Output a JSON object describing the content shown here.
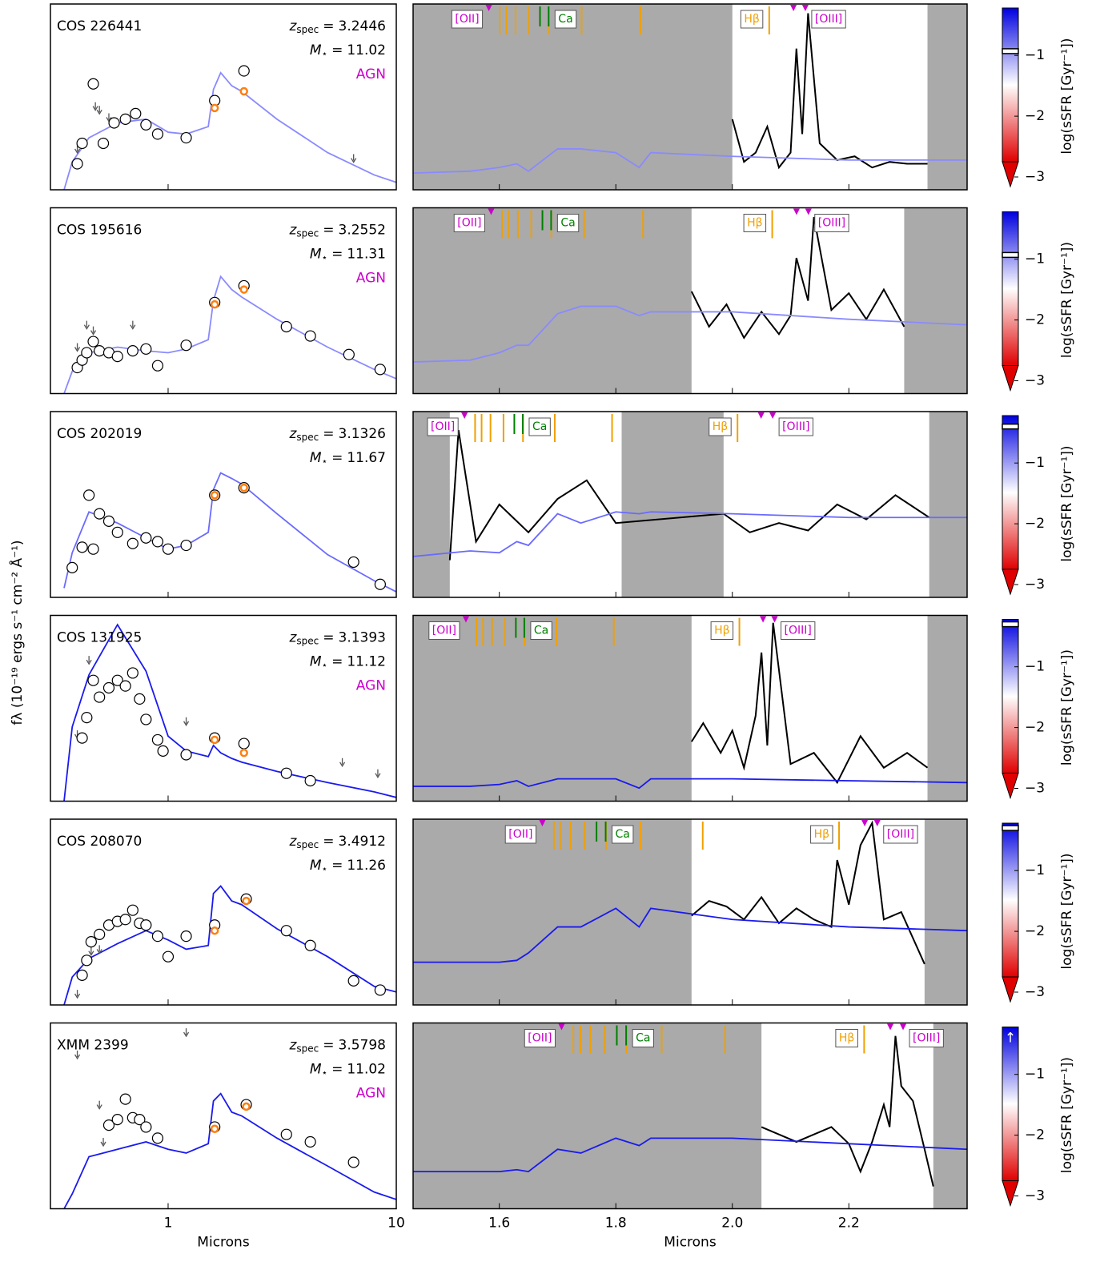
{
  "chart_data": {
    "type": "sed-spectrum-grid",
    "y_label": "fλ (10⁻¹⁹ ergs s⁻¹ cm⁻² Å⁻¹)",
    "x_label_left": "Microns",
    "x_label_right": "Microns",
    "left_xlim": [
      0.305,
      10
    ],
    "left_log": true,
    "left_xticks": [
      1,
      10
    ],
    "right_xlim": [
      1.452,
      2.403
    ],
    "right_xticks": [
      1.6,
      1.8,
      {
        "value": 2,
        "label": "2.0"
      },
      2.2
    ],
    "ylim": [
      0,
      10
    ],
    "colorbar_label": "log(sSFR [Gyr⁻¹])",
    "colorbar_lim": [
      -3,
      -0.22
    ],
    "colorbar_ticks": [
      {
        "value": -1,
        "label": "−1"
      },
      {
        "value": -2,
        "label": "−2"
      },
      {
        "value": -3,
        "label": "−3"
      }
    ],
    "colorbar_colors": [
      "#0000e0",
      "#ffffff",
      "#e00000"
    ],
    "redshift_label": {
      "symbol": "z",
      "subscript": "spec",
      "sign": "="
    },
    "mass_label": {
      "symbol": "M",
      "subscript": "⋆",
      "sign": "="
    },
    "flag_color": "#cc00cc",
    "photometry_color": "#ffffff",
    "fit_color": "#ff7f0e",
    "limit_color": "#555555",
    "spectrum_color": "#000000",
    "masked_color": "#aaaaaa",
    "features": [
      {
        "name": "[OII]",
        "rest": [
          0.3727
        ],
        "color": "#cc00cc",
        "style": "triangle",
        "label_side": "left"
      },
      {
        "rest": [
          0.3771,
          0.3798,
          0.3835,
          0.3889,
          0.397,
          0.4102,
          0.434
        ],
        "color": "#f0a000",
        "style": "bar"
      },
      {
        "name": "Ca",
        "rest": [
          0.3934,
          0.3969
        ],
        "color": "#008000",
        "style": "bar",
        "label_side": "right"
      },
      {
        "name": "Hβ",
        "rest": [
          0.4861
        ],
        "color": "#f0a000",
        "style": "bar",
        "label_side": "left"
      },
      {
        "name": "[OIII]",
        "rest": [
          0.4959,
          0.5007
        ],
        "color": "#cc00cc",
        "style": "triangle",
        "label_side": "right"
      }
    ],
    "sed_x": [
      0.35,
      0.38,
      0.45,
      0.6,
      0.8,
      1.0,
      1.2,
      1.5,
      1.58,
      1.7,
      1.9,
      2.1,
      3,
      5,
      8,
      10
    ],
    "model_x": [
      1.452,
      1.55,
      1.6,
      1.63,
      1.65,
      1.7,
      1.74,
      1.8,
      1.84,
      1.86,
      2.0,
      2.2,
      2.403
    ],
    "panels": [
      {
        "name": "COS 226441",
        "zspec": 3.2446,
        "mass": 11.02,
        "flag": "AGN",
        "ssfr": -0.93,
        "sed_color": "#8a8aff",
        "sed_y": [
          0,
          1.5,
          2.8,
          3.6,
          3.8,
          3.1,
          3.0,
          3.4,
          5.4,
          6.3,
          5.6,
          5.3,
          3.8,
          2.0,
          0.8,
          0.4
        ],
        "phot_x": [
          0.4,
          0.42,
          0.47,
          0.52,
          0.58,
          0.65,
          0.72,
          0.8,
          0.9,
          1.2,
          1.6,
          2.15
        ],
        "phot_y": [
          1.4,
          2.5,
          5.7,
          2.5,
          3.6,
          3.8,
          4.1,
          3.5,
          3.0,
          2.8,
          4.8,
          6.4
        ],
        "fit_x": [
          1.6,
          2.15
        ],
        "fit_y": [
          4.4,
          5.3
        ],
        "lim_x": [
          0.4,
          0.48,
          0.5,
          0.55,
          6.5
        ],
        "lim_y": [
          2.2,
          4.5,
          4.3,
          3.9,
          1.7
        ],
        "windows": [
          [
            2.0,
            2.335
          ]
        ],
        "model_y": [
          0.9,
          1.0,
          1.2,
          1.4,
          1.0,
          2.2,
          2.2,
          2.0,
          1.2,
          2.0,
          1.8,
          1.6,
          1.6
        ],
        "obs_x": [
          2.0,
          2.02,
          2.04,
          2.06,
          2.08,
          2.1,
          2.11,
          2.12,
          2.13,
          2.15,
          2.18,
          2.21,
          2.24,
          2.27,
          2.3,
          2.335
        ],
        "obs_y": [
          3.8,
          1.5,
          2.0,
          3.4,
          1.2,
          2.0,
          7.6,
          3.0,
          9.5,
          2.5,
          1.6,
          1.8,
          1.2,
          1.5,
          1.4,
          1.4
        ]
      },
      {
        "name": "COS 195616",
        "zspec": 3.2552,
        "mass": 11.31,
        "flag": "AGN",
        "ssfr": -0.93,
        "sed_color": "#8a8aff",
        "sed_y": [
          0,
          1.2,
          2.2,
          2.5,
          2.3,
          2.2,
          2.4,
          2.9,
          5.0,
          6.3,
          5.6,
          5.2,
          4.0,
          2.5,
          1.3,
          0.8
        ],
        "phot_x": [
          0.4,
          0.42,
          0.44,
          0.47,
          0.5,
          0.55,
          0.6,
          0.7,
          0.8,
          0.9,
          1.2,
          1.6,
          2.15,
          3.3,
          4.2,
          6.2,
          8.5
        ],
        "phot_y": [
          1.4,
          1.8,
          2.2,
          2.8,
          2.3,
          2.2,
          2.0,
          2.3,
          2.4,
          1.5,
          2.6,
          4.9,
          5.8,
          3.6,
          3.1,
          2.1,
          1.3
        ],
        "fit_x": [
          1.6,
          2.15
        ],
        "fit_y": [
          4.8,
          5.6
        ],
        "lim_x": [
          0.4,
          0.44,
          0.47,
          0.7
        ],
        "lim_y": [
          2.5,
          3.7,
          3.4,
          3.7
        ],
        "windows": [
          [
            1.93,
            2.295
          ]
        ],
        "model_y": [
          1.7,
          1.8,
          2.2,
          2.6,
          2.6,
          4.3,
          4.7,
          4.7,
          4.2,
          4.4,
          4.4,
          4.0,
          3.7
        ],
        "obs_x": [
          1.93,
          1.96,
          1.99,
          2.02,
          2.05,
          2.08,
          2.1,
          2.11,
          2.13,
          2.14,
          2.17,
          2.2,
          2.23,
          2.26,
          2.295
        ],
        "obs_y": [
          5.5,
          3.6,
          4.8,
          3.0,
          4.4,
          3.2,
          4.2,
          7.3,
          5.0,
          9.5,
          4.5,
          5.4,
          4.0,
          5.6,
          3.6
        ]
      },
      {
        "name": "COS 202019",
        "zspec": 3.1326,
        "mass": 11.67,
        "ssfr": -0.4,
        "sed_color": "#6a6aff",
        "sed_y": [
          0.5,
          2.4,
          4.6,
          4.0,
          3.2,
          2.6,
          2.8,
          3.5,
          5.8,
          6.7,
          6.4,
          6.1,
          4.5,
          2.3,
          0.9,
          0.3
        ],
        "phot_x": [
          0.38,
          0.42,
          0.45,
          0.47,
          0.5,
          0.55,
          0.6,
          0.7,
          0.8,
          0.9,
          1.0,
          1.2,
          1.6,
          2.15,
          6.5,
          8.5
        ],
        "phot_y": [
          1.6,
          2.7,
          5.5,
          2.6,
          4.5,
          4.1,
          3.5,
          2.9,
          3.2,
          3.0,
          2.6,
          2.8,
          5.5,
          5.9,
          1.9,
          0.7
        ],
        "fit_x": [
          1.6,
          2.15
        ],
        "fit_y": [
          5.5,
          5.9
        ],
        "lim_x": [],
        "lim_y": [],
        "windows": [
          [
            1.515,
            1.81
          ],
          [
            1.985,
            2.338
          ]
        ],
        "model_y": [
          2.2,
          2.5,
          2.4,
          3.0,
          2.8,
          4.5,
          4.0,
          4.6,
          4.5,
          4.6,
          4.5,
          4.3,
          4.3
        ],
        "obs_x": [
          1.515,
          1.53,
          1.56,
          1.6,
          1.65,
          1.7,
          1.75,
          1.8,
          1.985,
          2.03,
          2.08,
          2.13,
          2.18,
          2.23,
          2.28,
          2.338
        ],
        "obs_y": [
          2.0,
          9.0,
          3.0,
          5.0,
          3.5,
          5.3,
          6.3,
          4.0,
          4.5,
          3.5,
          4.0,
          3.6,
          5.0,
          4.2,
          5.5,
          4.3
        ]
      },
      {
        "name": "COS 131925",
        "zspec": 3.1393,
        "mass": 11.12,
        "flag": "AGN",
        "ssfr": -0.3,
        "sed_color": "#1a1aee",
        "sed_y": [
          0,
          4.0,
          6.8,
          9.5,
          7.0,
          3.5,
          2.7,
          2.4,
          3.0,
          2.6,
          2.3,
          2.1,
          1.6,
          1.0,
          0.5,
          0.2
        ],
        "phot_x": [
          0.42,
          0.44,
          0.47,
          0.5,
          0.55,
          0.6,
          0.65,
          0.7,
          0.75,
          0.8,
          0.9,
          0.95,
          1.2,
          1.6,
          2.15,
          3.3,
          4.2
        ],
        "phot_y": [
          3.4,
          4.5,
          6.5,
          5.6,
          6.1,
          6.5,
          6.2,
          6.9,
          5.5,
          4.4,
          3.3,
          2.7,
          2.5,
          3.4,
          3.1,
          1.5,
          1.1
        ],
        "fit_x": [
          1.6,
          2.15
        ],
        "fit_y": [
          3.3,
          2.6
        ],
        "lim_x": [
          0.4,
          0.45,
          1.2,
          5.8,
          8.3
        ],
        "lim_y": [
          3.6,
          7.6,
          4.3,
          2.1,
          1.5
        ],
        "windows": [
          [
            1.93,
            2.335
          ]
        ],
        "model_y": [
          0.8,
          0.8,
          0.9,
          1.1,
          0.8,
          1.2,
          1.2,
          1.2,
          0.7,
          1.2,
          1.2,
          1.1,
          1.0
        ],
        "obs_x": [
          1.93,
          1.95,
          1.98,
          2.0,
          2.02,
          2.04,
          2.05,
          2.06,
          2.07,
          2.1,
          2.14,
          2.18,
          2.22,
          2.26,
          2.3,
          2.335
        ],
        "obs_y": [
          3.2,
          4.2,
          2.6,
          3.8,
          1.8,
          4.6,
          8.0,
          3.0,
          9.6,
          2.0,
          2.6,
          1.0,
          3.5,
          1.8,
          2.6,
          1.8
        ]
      },
      {
        "name": "COS 208070",
        "zspec": 3.4912,
        "mass": 11.26,
        "ssfr": -0.3,
        "sed_color": "#1a1aee",
        "sed_y": [
          0,
          1.5,
          2.5,
          3.3,
          4.0,
          3.5,
          3.0,
          3.2,
          6.0,
          6.4,
          5.6,
          5.4,
          4.1,
          2.6,
          1.0,
          0.7
        ],
        "phot_x": [
          0.42,
          0.44,
          0.46,
          0.5,
          0.55,
          0.6,
          0.65,
          0.7,
          0.75,
          0.8,
          0.9,
          1.0,
          1.2,
          1.6,
          2.2,
          3.3,
          4.2,
          6.5,
          8.5
        ],
        "phot_y": [
          1.6,
          2.4,
          3.4,
          3.8,
          4.3,
          4.5,
          4.6,
          5.1,
          4.4,
          4.3,
          3.7,
          2.6,
          3.7,
          4.3,
          5.7,
          4.0,
          3.2,
          1.3,
          0.8
        ],
        "fit_x": [
          1.6,
          2.2
        ],
        "fit_y": [
          4.0,
          5.6
        ],
        "lim_x": [
          0.4,
          0.46,
          0.5
        ],
        "lim_y": [
          0.6,
          2.9,
          3.0
        ],
        "windows": [
          [
            1.93,
            2.33
          ]
        ],
        "model_y": [
          2.3,
          2.3,
          2.3,
          2.4,
          2.8,
          4.2,
          4.2,
          5.2,
          4.2,
          5.2,
          4.6,
          4.2,
          4.0
        ],
        "obs_x": [
          1.93,
          1.96,
          1.99,
          2.02,
          2.05,
          2.08,
          2.11,
          2.14,
          2.17,
          2.18,
          2.2,
          2.22,
          2.24,
          2.26,
          2.29,
          2.33
        ],
        "obs_y": [
          4.8,
          5.6,
          5.3,
          4.6,
          5.8,
          4.4,
          5.2,
          4.6,
          4.2,
          7.8,
          5.4,
          8.6,
          9.8,
          4.6,
          5.0,
          2.2
        ]
      },
      {
        "name": "XMM 2399",
        "zspec": 3.5798,
        "mass": 11.02,
        "flag": "AGN",
        "ssfr": -0.3,
        "ssfr_limit_symbol": "↑",
        "sed_color": "#1a1aee",
        "sed_y": [
          0,
          0.8,
          2.8,
          3.2,
          3.6,
          3.2,
          3.0,
          3.5,
          5.8,
          6.2,
          5.2,
          5.0,
          3.8,
          2.3,
          0.9,
          0.5
        ],
        "phot_x": [
          0.55,
          0.6,
          0.65,
          0.7,
          0.75,
          0.8,
          0.9,
          1.6,
          2.2,
          3.3,
          4.2,
          6.5
        ],
        "phot_y": [
          4.5,
          4.8,
          5.9,
          4.9,
          4.8,
          4.4,
          3.8,
          4.4,
          5.6,
          4.0,
          3.6,
          2.5
        ],
        "fit_x": [
          1.6,
          2.2
        ],
        "fit_y": [
          4.3,
          5.5
        ],
        "lim_x": [
          0.4,
          0.5,
          0.52,
          1.2
        ],
        "lim_y": [
          8.3,
          5.6,
          3.6,
          9.5
        ],
        "windows": [
          [
            2.05,
            2.345
          ]
        ],
        "model_y": [
          2.0,
          2.0,
          2.0,
          2.1,
          2.0,
          3.2,
          3.0,
          3.8,
          3.4,
          3.8,
          3.8,
          3.5,
          3.2
        ],
        "obs_x": [
          2.05,
          2.08,
          2.11,
          2.14,
          2.17,
          2.2,
          2.22,
          2.24,
          2.26,
          2.27,
          2.28,
          2.29,
          2.31,
          2.33,
          2.345
        ],
        "obs_y": [
          4.4,
          4.0,
          3.6,
          4.0,
          4.4,
          3.5,
          2.0,
          3.6,
          5.6,
          4.4,
          9.3,
          6.6,
          5.8,
          3.2,
          1.2
        ]
      }
    ]
  }
}
